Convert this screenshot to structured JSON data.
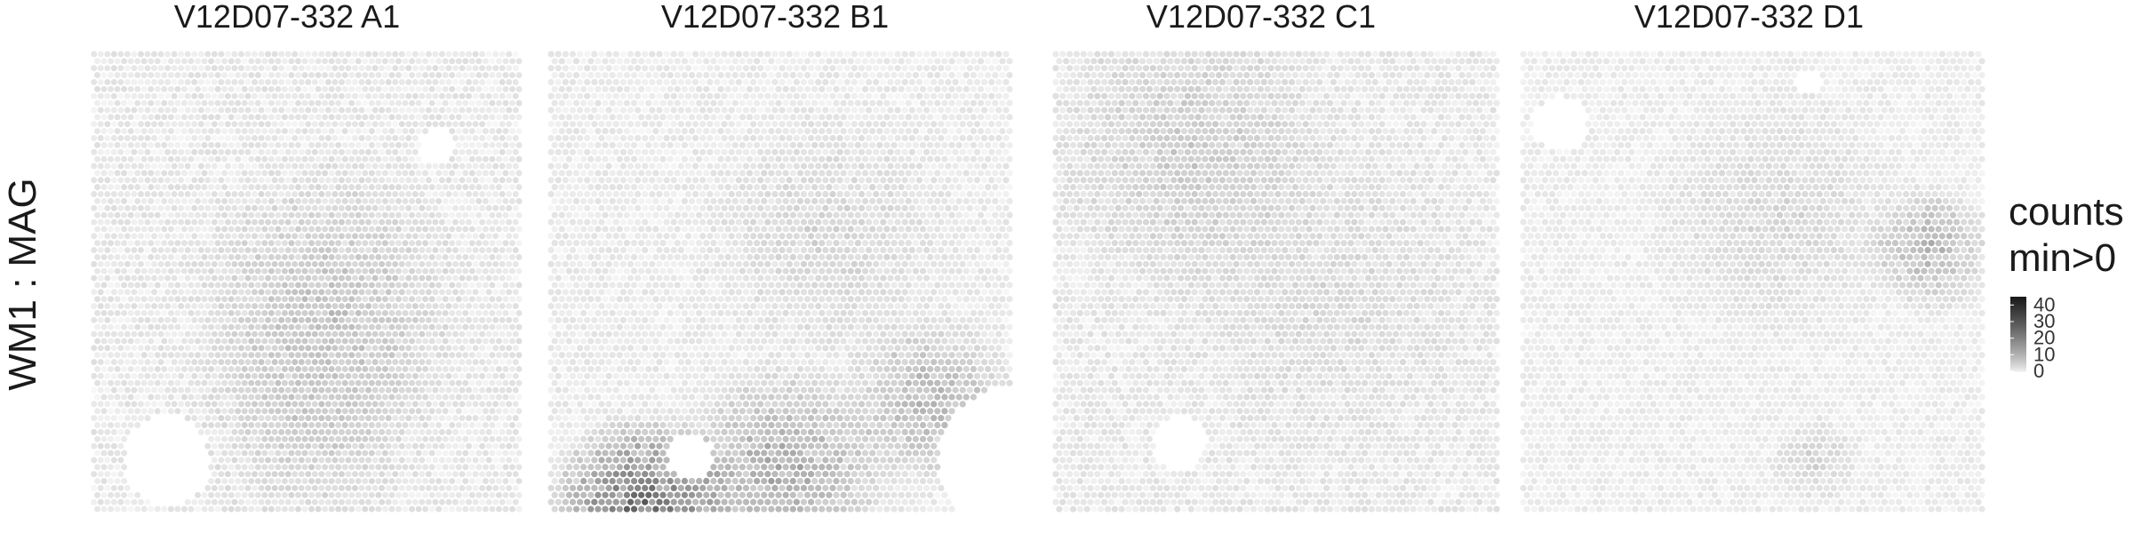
{
  "chart_data": {
    "type": "heatmap",
    "panel_titles": [
      "V12D07-332  A1",
      "V12D07-332  B1",
      "V12D07-332  C1",
      "V12D07-332  D1"
    ],
    "ylabel": "WM1 : MAG",
    "legend": {
      "title_lines": [
        "counts",
        "min>0"
      ],
      "ticks": [
        0,
        10,
        20,
        30,
        40
      ],
      "range": [
        0,
        45
      ],
      "placement": "right",
      "colors": {
        "low": "#f7f7f7",
        "high": "#1a1a1a"
      }
    },
    "panels": [
      {
        "name": "A1",
        "base": 1.5,
        "holes": [
          {
            "cx": 0.17,
            "cy": 0.88,
            "r": 0.1
          },
          {
            "cx": 0.8,
            "cy": 0.2,
            "r": 0.04
          }
        ],
        "hotspots": [
          {
            "cx": 0.55,
            "cy": 0.55,
            "r": 0.35,
            "v": 5
          },
          {
            "cx": 0.5,
            "cy": 0.8,
            "r": 0.3,
            "v": 3
          }
        ]
      },
      {
        "name": "B1",
        "base": 1.2,
        "holes": [
          {
            "cx": 1.0,
            "cy": 0.88,
            "r": 0.16
          },
          {
            "cx": 0.3,
            "cy": 0.87,
            "r": 0.05
          }
        ],
        "hotspots": [
          {
            "cx": 0.2,
            "cy": 0.99,
            "r": 0.22,
            "v": 22
          },
          {
            "cx": 0.5,
            "cy": 0.9,
            "r": 0.25,
            "v": 10
          },
          {
            "cx": 0.82,
            "cy": 0.75,
            "r": 0.2,
            "v": 8
          },
          {
            "cx": 0.6,
            "cy": 0.4,
            "r": 0.3,
            "v": 3
          }
        ]
      },
      {
        "name": "C1",
        "base": 1.5,
        "holes": [
          {
            "cx": 0.28,
            "cy": 0.84,
            "r": 0.06
          }
        ],
        "hotspots": [
          {
            "cx": 0.3,
            "cy": 0.2,
            "r": 0.35,
            "v": 4
          },
          {
            "cx": 0.6,
            "cy": 0.5,
            "r": 0.4,
            "v": 2
          }
        ]
      },
      {
        "name": "D1",
        "base": 1.0,
        "holes": [
          {
            "cx": 0.08,
            "cy": 0.15,
            "r": 0.06
          },
          {
            "cx": 0.62,
            "cy": 0.06,
            "r": 0.03
          }
        ],
        "hotspots": [
          {
            "cx": 0.88,
            "cy": 0.42,
            "r": 0.15,
            "v": 8
          },
          {
            "cx": 0.55,
            "cy": 0.35,
            "r": 0.3,
            "v": 3
          },
          {
            "cx": 0.63,
            "cy": 0.88,
            "r": 0.1,
            "v": 4
          }
        ]
      }
    ]
  }
}
